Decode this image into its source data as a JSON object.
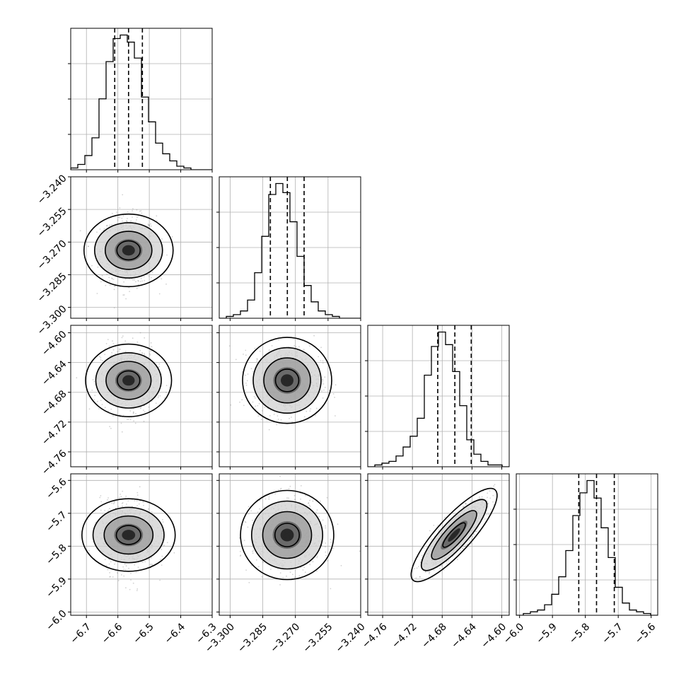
{
  "chart_data": {
    "type": "corner",
    "grid": true,
    "quantiles": [
      0.16,
      0.5,
      0.84
    ],
    "colors": {
      "line": "#000000",
      "grid": "#b0b0b0",
      "scatter": "#7f7f7f"
    },
    "parameters": [
      {
        "range": [
          -6.75,
          -6.3
        ],
        "ticks": [
          -6.7,
          -6.6,
          -6.5,
          -6.4,
          -6.3
        ],
        "tick_labels": [
          "−6.7",
          "−6.6",
          "−6.5",
          "−6.4",
          "−6.3"
        ],
        "mean": -6.566,
        "sd": 0.044,
        "quantile_values": [
          -6.61,
          -6.566,
          -6.522
        ],
        "hist": [
          1,
          3,
          8,
          18,
          40,
          61,
          74,
          76,
          72,
          63,
          41,
          27,
          15,
          9,
          5,
          2,
          1,
          0,
          0,
          0
        ]
      },
      {
        "range": [
          -3.305,
          -3.24
        ],
        "ticks": [
          -3.3,
          -3.285,
          -3.27,
          -3.255,
          -3.24
        ],
        "tick_labels": [
          "−3.300",
          "−3.285",
          "−3.270",
          "−3.255",
          "−3.240"
        ],
        "mean": -3.2738,
        "sd": 0.0078,
        "quantile_values": [
          -3.2815,
          -3.2737,
          -3.266
        ],
        "hist": [
          0,
          1,
          2,
          4,
          10,
          25,
          45,
          68,
          74,
          69,
          53,
          34,
          18,
          9,
          4,
          2,
          1,
          0,
          0,
          0
        ]
      },
      {
        "range": [
          -4.78,
          -4.59
        ],
        "ticks": [
          -4.76,
          -4.72,
          -4.68,
          -4.64,
          -4.6
        ],
        "tick_labels": [
          "−4.76",
          "−4.72",
          "−4.68",
          "−4.64",
          "−4.60"
        ],
        "mean": -4.664,
        "sd": 0.022,
        "quantile_values": [
          -4.686,
          -4.663,
          -4.641
        ],
        "hist": [
          0,
          1,
          2,
          3,
          6,
          11,
          17,
          27,
          51,
          67,
          75,
          68,
          53,
          34,
          15,
          7,
          3,
          1,
          1,
          0
        ]
      },
      {
        "range": [
          -6.01,
          -5.58
        ],
        "ticks": [
          -6.0,
          -5.9,
          -5.8,
          -5.7,
          -5.6
        ],
        "tick_labels": [
          "−6.0",
          "−5.9",
          "−5.8",
          "−5.7",
          "−5.6"
        ],
        "mean": -5.766,
        "sd": 0.054,
        "quantile_values": [
          -5.82,
          -5.766,
          -5.712
        ],
        "hist": [
          0,
          1,
          2,
          3,
          6,
          12,
          22,
          37,
          57,
          70,
          77,
          67,
          50,
          33,
          16,
          7,
          3,
          2,
          1,
          0
        ]
      }
    ],
    "correlations": [
      [
        1,
        0,
        0,
        0
      ],
      [
        0,
        1,
        0,
        0
      ],
      [
        0,
        0,
        1,
        0.85
      ],
      [
        0,
        0,
        0.85,
        1
      ]
    ]
  }
}
